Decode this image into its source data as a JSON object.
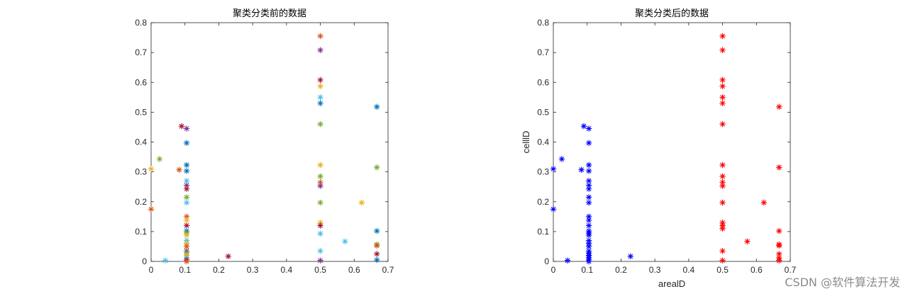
{
  "watermark": "CSDN @软件算法开发",
  "chart_data": [
    {
      "type": "scatter",
      "title": "聚类分类前的数据",
      "xlabel": "",
      "ylabel": "",
      "xlim": [
        0,
        0.7
      ],
      "ylim": [
        0,
        0.8
      ],
      "xticks": [
        "0",
        "0.1",
        "0.2",
        "0.3",
        "0.4",
        "0.5",
        "0.6",
        "0.7"
      ],
      "yticks": [
        "0",
        "0.1",
        "0.2",
        "0.3",
        "0.4",
        "0.5",
        "0.6",
        "0.7",
        "0.8"
      ],
      "marker": "*",
      "grid": false,
      "points": [
        {
          "x": 0.0,
          "y": 0.31,
          "color": "#EDB120"
        },
        {
          "x": 0.0,
          "y": 0.175,
          "color": "#D95319"
        },
        {
          "x": 0.025,
          "y": 0.343,
          "color": "#77AC30"
        },
        {
          "x": 0.042,
          "y": 0.003,
          "color": "#4DBEEE"
        },
        {
          "x": 0.083,
          "y": 0.307,
          "color": "#D95319"
        },
        {
          "x": 0.09,
          "y": 0.453,
          "color": "#A2142F"
        },
        {
          "x": 0.105,
          "y": 0.445,
          "color": "#7E2F8E"
        },
        {
          "x": 0.105,
          "y": 0.397,
          "color": "#0072BD"
        },
        {
          "x": 0.105,
          "y": 0.323,
          "color": "#0072BD"
        },
        {
          "x": 0.105,
          "y": 0.303,
          "color": "#0072BD"
        },
        {
          "x": 0.105,
          "y": 0.27,
          "color": "#4DBEEE"
        },
        {
          "x": 0.105,
          "y": 0.255,
          "color": "#7E2F8E"
        },
        {
          "x": 0.105,
          "y": 0.243,
          "color": "#A2142F"
        },
        {
          "x": 0.105,
          "y": 0.215,
          "color": "#77AC30"
        },
        {
          "x": 0.105,
          "y": 0.197,
          "color": "#4DBEEE"
        },
        {
          "x": 0.105,
          "y": 0.15,
          "color": "#D95319"
        },
        {
          "x": 0.105,
          "y": 0.138,
          "color": "#EDB120"
        },
        {
          "x": 0.105,
          "y": 0.12,
          "color": "#A2142F"
        },
        {
          "x": 0.105,
          "y": 0.102,
          "color": "#0072BD"
        },
        {
          "x": 0.105,
          "y": 0.095,
          "color": "#77AC30"
        },
        {
          "x": 0.105,
          "y": 0.088,
          "color": "#EDB120"
        },
        {
          "x": 0.105,
          "y": 0.07,
          "color": "#4DBEEE"
        },
        {
          "x": 0.105,
          "y": 0.06,
          "color": "#EDB120"
        },
        {
          "x": 0.105,
          "y": 0.05,
          "color": "#D95319"
        },
        {
          "x": 0.105,
          "y": 0.035,
          "color": "#7E2F8E"
        },
        {
          "x": 0.105,
          "y": 0.028,
          "color": "#77AC30"
        },
        {
          "x": 0.105,
          "y": 0.02,
          "color": "#EDB120"
        },
        {
          "x": 0.105,
          "y": 0.012,
          "color": "#4DBEEE"
        },
        {
          "x": 0.105,
          "y": 0.005,
          "color": "#A2142F"
        },
        {
          "x": 0.105,
          "y": 0.0,
          "color": "#D95319"
        },
        {
          "x": 0.228,
          "y": 0.017,
          "color": "#A2142F"
        },
        {
          "x": 0.5,
          "y": 0.755,
          "color": "#D95319"
        },
        {
          "x": 0.5,
          "y": 0.708,
          "color": "#7E2F8E"
        },
        {
          "x": 0.5,
          "y": 0.608,
          "color": "#A2142F"
        },
        {
          "x": 0.5,
          "y": 0.587,
          "color": "#EDB120"
        },
        {
          "x": 0.5,
          "y": 0.55,
          "color": "#4DBEEE"
        },
        {
          "x": 0.5,
          "y": 0.53,
          "color": "#0072BD"
        },
        {
          "x": 0.5,
          "y": 0.46,
          "color": "#77AC30"
        },
        {
          "x": 0.5,
          "y": 0.323,
          "color": "#EDB120"
        },
        {
          "x": 0.5,
          "y": 0.285,
          "color": "#77AC30"
        },
        {
          "x": 0.5,
          "y": 0.265,
          "color": "#D95319"
        },
        {
          "x": 0.5,
          "y": 0.253,
          "color": "#7E2F8E"
        },
        {
          "x": 0.5,
          "y": 0.197,
          "color": "#77AC30"
        },
        {
          "x": 0.5,
          "y": 0.13,
          "color": "#EDB120"
        },
        {
          "x": 0.5,
          "y": 0.12,
          "color": "#A2142F"
        },
        {
          "x": 0.5,
          "y": 0.093,
          "color": "#4DBEEE"
        },
        {
          "x": 0.5,
          "y": 0.035,
          "color": "#4DBEEE"
        },
        {
          "x": 0.5,
          "y": 0.003,
          "color": "#7E2F8E"
        },
        {
          "x": 0.573,
          "y": 0.067,
          "color": "#4DBEEE"
        },
        {
          "x": 0.622,
          "y": 0.197,
          "color": "#EDB120"
        },
        {
          "x": 0.667,
          "y": 0.518,
          "color": "#0072BD"
        },
        {
          "x": 0.667,
          "y": 0.315,
          "color": "#77AC30"
        },
        {
          "x": 0.667,
          "y": 0.102,
          "color": "#0072BD"
        },
        {
          "x": 0.667,
          "y": 0.057,
          "color": "#77AC30"
        },
        {
          "x": 0.667,
          "y": 0.053,
          "color": "#D95319"
        },
        {
          "x": 0.667,
          "y": 0.025,
          "color": "#A2142F"
        },
        {
          "x": 0.667,
          "y": 0.005,
          "color": "#0072BD"
        }
      ]
    },
    {
      "type": "scatter",
      "title": "聚类分类后的数据",
      "xlabel": "arealD",
      "ylabel": "celllD",
      "xlim": [
        0,
        0.7
      ],
      "ylim": [
        0,
        0.8
      ],
      "xticks": [
        "0",
        "0.1",
        "0.2",
        "0.3",
        "0.4",
        "0.5",
        "0.6",
        "0.7"
      ],
      "yticks": [
        "0",
        "0.1",
        "0.2",
        "0.3",
        "0.4",
        "0.5",
        "0.6",
        "0.7",
        "0.8"
      ],
      "marker": "*",
      "grid": false,
      "series": [
        {
          "color": "#0000FF",
          "points": [
            [
              0.0,
              0.31
            ],
            [
              0.0,
              0.175
            ],
            [
              0.025,
              0.343
            ],
            [
              0.042,
              0.003
            ],
            [
              0.083,
              0.307
            ],
            [
              0.09,
              0.453
            ],
            [
              0.105,
              0.445
            ],
            [
              0.105,
              0.397
            ],
            [
              0.105,
              0.323
            ],
            [
              0.105,
              0.303
            ],
            [
              0.105,
              0.27
            ],
            [
              0.105,
              0.255
            ],
            [
              0.105,
              0.243
            ],
            [
              0.105,
              0.215
            ],
            [
              0.105,
              0.197
            ],
            [
              0.105,
              0.15
            ],
            [
              0.105,
              0.138
            ],
            [
              0.105,
              0.12
            ],
            [
              0.105,
              0.102
            ],
            [
              0.105,
              0.095
            ],
            [
              0.105,
              0.088
            ],
            [
              0.105,
              0.07
            ],
            [
              0.105,
              0.06
            ],
            [
              0.105,
              0.05
            ],
            [
              0.105,
              0.035
            ],
            [
              0.105,
              0.028
            ],
            [
              0.105,
              0.02
            ],
            [
              0.105,
              0.012
            ],
            [
              0.105,
              0.005
            ],
            [
              0.105,
              0.0
            ],
            [
              0.228,
              0.017
            ]
          ]
        },
        {
          "color": "#FF0000",
          "points": [
            [
              0.5,
              0.755
            ],
            [
              0.5,
              0.708
            ],
            [
              0.5,
              0.608
            ],
            [
              0.5,
              0.587
            ],
            [
              0.5,
              0.55
            ],
            [
              0.5,
              0.53
            ],
            [
              0.5,
              0.46
            ],
            [
              0.5,
              0.323
            ],
            [
              0.5,
              0.285
            ],
            [
              0.5,
              0.265
            ],
            [
              0.5,
              0.253
            ],
            [
              0.5,
              0.197
            ],
            [
              0.5,
              0.13
            ],
            [
              0.5,
              0.12
            ],
            [
              0.5,
              0.11
            ],
            [
              0.5,
              0.035
            ],
            [
              0.5,
              0.003
            ],
            [
              0.573,
              0.067
            ],
            [
              0.622,
              0.197
            ],
            [
              0.667,
              0.518
            ],
            [
              0.667,
              0.315
            ],
            [
              0.667,
              0.102
            ],
            [
              0.667,
              0.057
            ],
            [
              0.667,
              0.053
            ],
            [
              0.667,
              0.025
            ],
            [
              0.667,
              0.012
            ],
            [
              0.667,
              0.003
            ]
          ]
        }
      ]
    }
  ]
}
